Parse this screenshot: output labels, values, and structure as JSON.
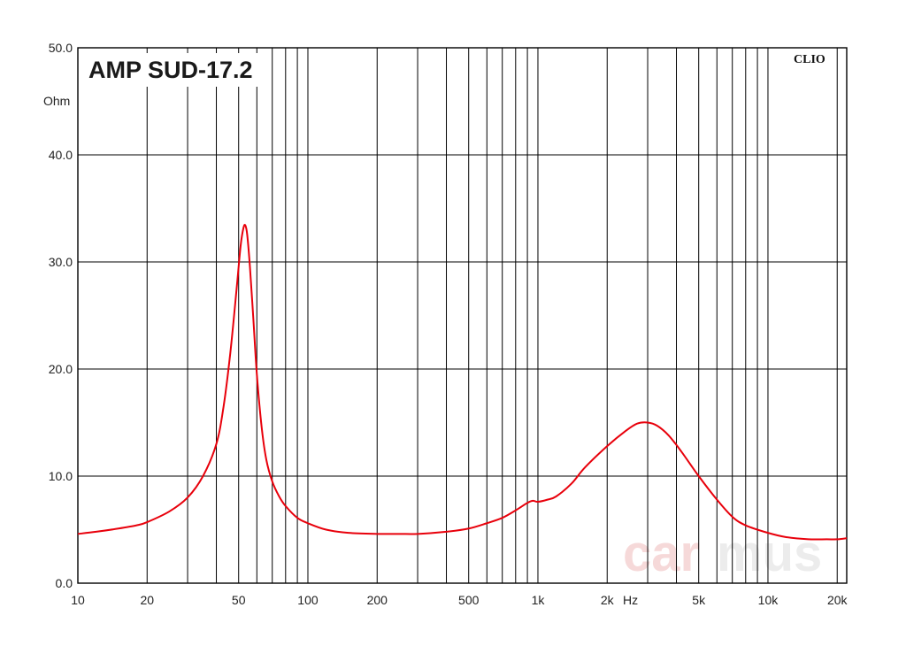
{
  "chart_data": {
    "type": "line",
    "title": "AMP SUD-17.2",
    "brand": "CLIO",
    "watermark": [
      "car",
      "mus"
    ],
    "xunit": "Hz",
    "yunit": "Ohm",
    "xscale": "log",
    "xlim": [
      10,
      22000
    ],
    "ylim": [
      0,
      50
    ],
    "grid": true,
    "x_ticks": [
      {
        "v": 10,
        "label": "10"
      },
      {
        "v": 20,
        "label": "20"
      },
      {
        "v": 50,
        "label": "50"
      },
      {
        "v": 100,
        "label": "100"
      },
      {
        "v": 200,
        "label": "200"
      },
      {
        "v": 500,
        "label": "500"
      },
      {
        "v": 1000,
        "label": "1k"
      },
      {
        "v": 2000,
        "label": "2k"
      },
      {
        "v": 5000,
        "label": "5k"
      },
      {
        "v": 10000,
        "label": "10k"
      },
      {
        "v": 20000,
        "label": "20k"
      }
    ],
    "y_ticks": [
      {
        "v": 0,
        "label": "0.0"
      },
      {
        "v": 10,
        "label": "10.0"
      },
      {
        "v": 20,
        "label": "20.0"
      },
      {
        "v": 30,
        "label": "30.0"
      },
      {
        "v": 40,
        "label": "40.0"
      },
      {
        "v": 50,
        "label": "50.0"
      }
    ],
    "series": [
      {
        "color": "#e8000b",
        "x": [
          10,
          12,
          15,
          18,
          20,
          25,
          30,
          35,
          40,
          43,
          46,
          49,
          51,
          52.5,
          53.5,
          54.5,
          56,
          58,
          60,
          63,
          66,
          70,
          75,
          80,
          90,
          100,
          120,
          150,
          200,
          250,
          300,
          400,
          500,
          600,
          700,
          800,
          900,
          950,
          1000,
          1100,
          1200,
          1400,
          1600,
          2000,
          2400,
          2700,
          3000,
          3300,
          3700,
          4200,
          5000,
          6000,
          7000,
          8000,
          10000,
          12000,
          15000,
          18000,
          20000,
          22000
        ],
        "y": [
          4.6,
          4.8,
          5.1,
          5.4,
          5.7,
          6.7,
          8.0,
          10.0,
          13.0,
          16.5,
          21.5,
          27.5,
          31.5,
          33.2,
          33.4,
          32.5,
          29.5,
          24.5,
          19.5,
          14.5,
          11.5,
          9.5,
          8.1,
          7.2,
          6.1,
          5.6,
          5.0,
          4.7,
          4.6,
          4.6,
          4.6,
          4.8,
          5.1,
          5.6,
          6.1,
          6.8,
          7.5,
          7.7,
          7.6,
          7.8,
          8.1,
          9.3,
          10.8,
          12.8,
          14.2,
          14.9,
          15.0,
          14.7,
          13.8,
          12.3,
          10.0,
          7.8,
          6.2,
          5.4,
          4.7,
          4.3,
          4.1,
          4.1,
          4.1,
          4.2
        ]
      }
    ]
  }
}
